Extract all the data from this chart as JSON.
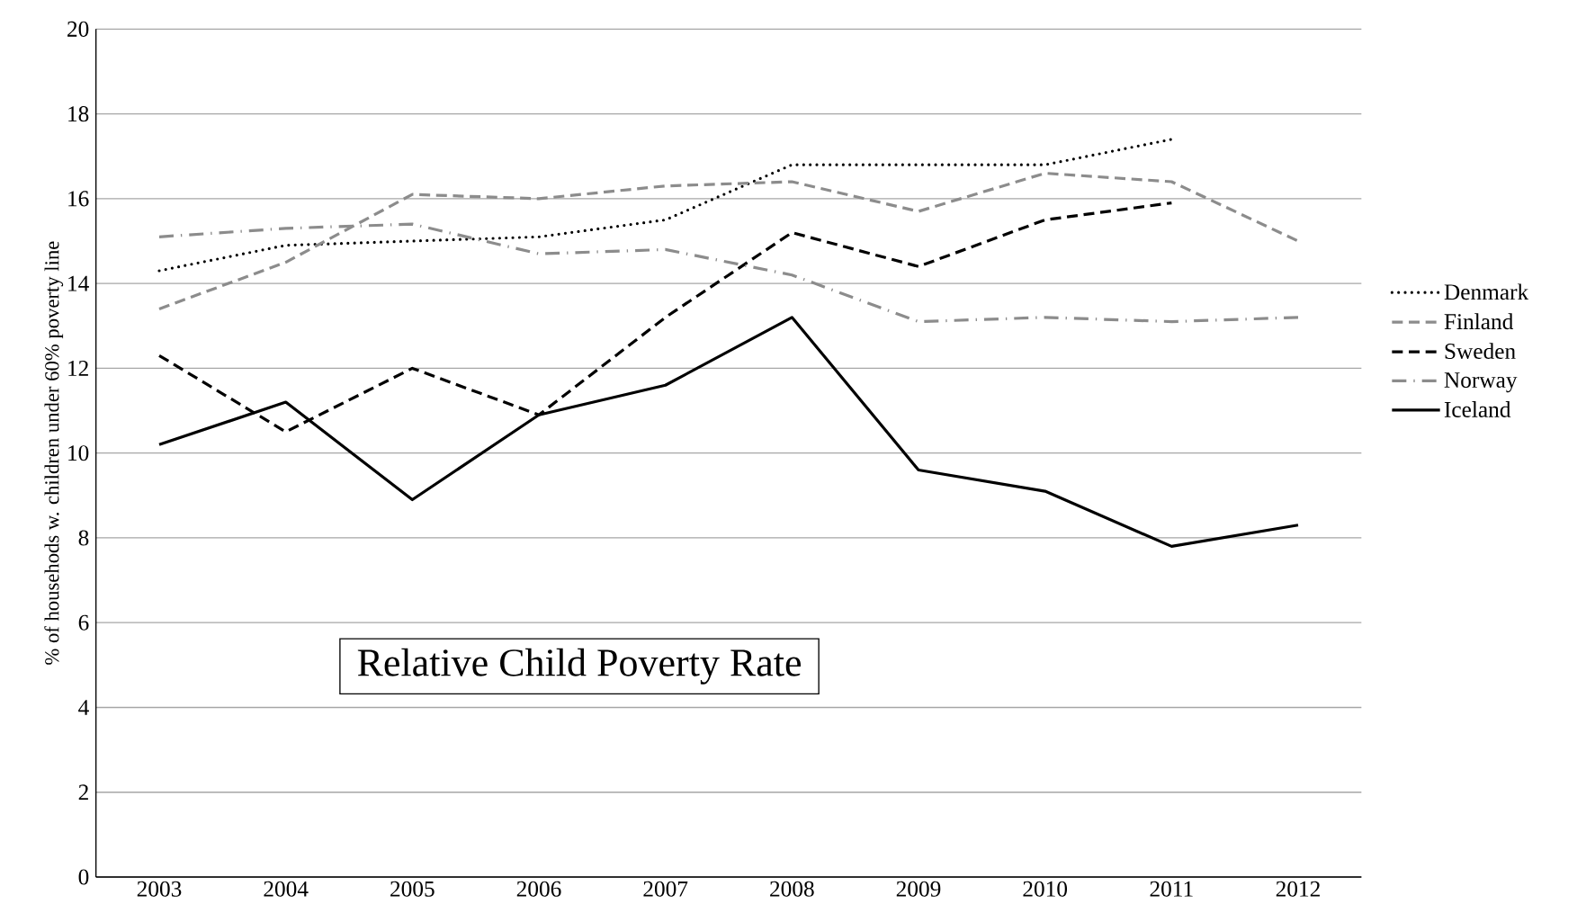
{
  "chart_data": {
    "type": "line",
    "title": "Relative Child Poverty Rate",
    "ylabel": "% of househods w. children under 60% poverty line",
    "categories": [
      "2003",
      "2004",
      "2005",
      "2006",
      "2007",
      "2008",
      "2009",
      "2010",
      "2011",
      "2012"
    ],
    "series": [
      {
        "name": "Denmark",
        "color": "#000000",
        "line_style": "dotted",
        "values": [
          14.3,
          14.9,
          15.0,
          15.1,
          15.5,
          16.8,
          16.8,
          16.8,
          17.4,
          null
        ]
      },
      {
        "name": "Finland",
        "color": "#8c8c8c",
        "line_style": "dashed",
        "values": [
          13.4,
          14.5,
          16.1,
          16.0,
          16.3,
          16.4,
          15.7,
          16.6,
          16.4,
          15.0
        ]
      },
      {
        "name": "Sweden",
        "color": "#000000",
        "line_style": "dashed",
        "values": [
          12.3,
          10.5,
          12.0,
          10.9,
          13.2,
          15.2,
          14.4,
          15.5,
          15.9,
          null
        ]
      },
      {
        "name": "Norway",
        "color": "#8c8c8c",
        "line_style": "dashdot",
        "values": [
          15.1,
          15.3,
          15.4,
          14.7,
          14.8,
          14.2,
          13.1,
          13.2,
          13.1,
          13.2
        ]
      },
      {
        "name": "Iceland",
        "color": "#000000",
        "line_style": "solid",
        "values": [
          10.2,
          11.2,
          8.9,
          10.9,
          11.6,
          13.2,
          9.6,
          9.1,
          7.8,
          8.3
        ]
      }
    ],
    "ylim": [
      0,
      20
    ],
    "yticks": [
      0,
      2,
      4,
      6,
      8,
      10,
      12,
      14,
      16,
      18,
      20
    ],
    "grid": "y",
    "legend": "right",
    "marker": "none"
  }
}
